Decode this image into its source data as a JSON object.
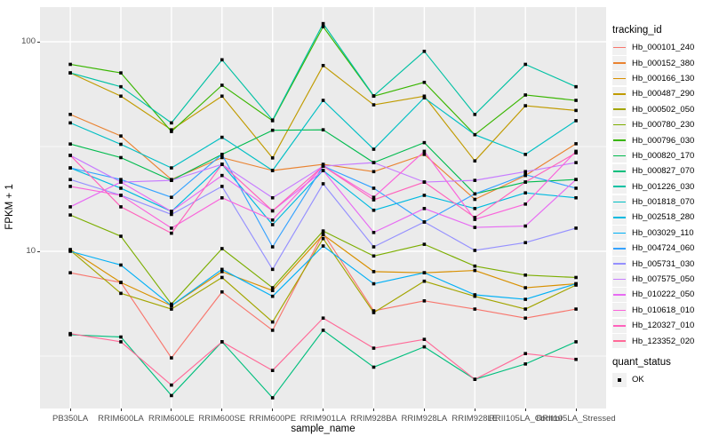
{
  "chart_data": {
    "type": "line",
    "title": "",
    "xlabel": "sample_name",
    "ylabel": "FPKM + 1",
    "y_scale": "log10",
    "ylim": [
      1.78,
      146
    ],
    "y_ticks": [
      10,
      100
    ],
    "y_minor_ticks": [
      3.162,
      31.62
    ],
    "grid": "white-on-gray-panel",
    "legend_position": "right",
    "legend_title": "tracking_id",
    "marker_legend": {
      "title": "quant_status",
      "label": "OK",
      "marker": "black-square"
    },
    "panel_color": "#EBEBEB",
    "categories": [
      "PB350LA",
      "RRIM600LA",
      "RRIM600LE",
      "RRIM600SE",
      "RRIM600PE",
      "RRIM901LA",
      "RRIM928BA",
      "RRIM928LA",
      "RRIM928LE",
      "RRII105LA_Control",
      "RRII105LA_Stressed"
    ],
    "series": [
      {
        "name": "Hb_000101_240",
        "color": "#F8766D",
        "values": [
          7.9,
          7.1,
          3.1,
          6.4,
          4.2,
          12.2,
          5.2,
          5.8,
          5.3,
          4.8,
          5.3
        ]
      },
      {
        "name": "Hb_000152_380",
        "color": "#EA8331",
        "values": [
          45,
          35.5,
          22,
          28,
          24.3,
          26,
          24,
          29,
          17.7,
          23,
          32.6
        ]
      },
      {
        "name": "Hb_000166_130",
        "color": "#D89000",
        "values": [
          10.2,
          7.1,
          5.5,
          8.0,
          6.5,
          12.0,
          8.0,
          7.9,
          8.1,
          6.7,
          7.0
        ]
      },
      {
        "name": "Hb_000487_290",
        "color": "#C09B00",
        "values": [
          71,
          55,
          38,
          55,
          27.9,
          77,
          50,
          55,
          27,
          49.5,
          47
        ]
      },
      {
        "name": "Hb_000502_050",
        "color": "#A3A500",
        "values": [
          10.1,
          6.3,
          5.3,
          7.5,
          4.6,
          11.5,
          5.1,
          7.2,
          6.1,
          5.3,
          6.9
        ]
      },
      {
        "name": "Hb_000780_230",
        "color": "#7CAE00",
        "values": [
          14.9,
          11.8,
          5.6,
          10.3,
          6.7,
          12.5,
          9.5,
          10.8,
          8.5,
          7.7,
          7.5
        ]
      },
      {
        "name": "Hb_000796_030",
        "color": "#39B600",
        "values": [
          78,
          71,
          37.3,
          62,
          42,
          118,
          55,
          64,
          36,
          55.7,
          52.5
        ]
      },
      {
        "name": "Hb_000820_170",
        "color": "#00BB4E",
        "values": [
          32.5,
          28,
          21.8,
          29,
          37.8,
          38,
          26.5,
          33,
          18.8,
          21.4,
          22
        ]
      },
      {
        "name": "Hb_000827_070",
        "color": "#00BF7D",
        "values": [
          4.0,
          3.9,
          2.05,
          3.7,
          2.0,
          4.2,
          2.8,
          3.5,
          2.45,
          2.9,
          3.7
        ]
      },
      {
        "name": "Hb_001226_030",
        "color": "#00C1A3",
        "values": [
          71,
          61,
          41,
          82,
          42.3,
          122,
          55.2,
          90,
          45,
          78,
          61
        ]
      },
      {
        "name": "Hb_001818_070",
        "color": "#00BFC4",
        "values": [
          41,
          32.4,
          25,
          35,
          24.3,
          52.5,
          30.7,
          54,
          36,
          29,
          42
        ]
      },
      {
        "name": "Hb_002518_280",
        "color": "#00BAE0",
        "values": [
          25,
          20,
          15.5,
          26,
          13.4,
          24.3,
          15.7,
          18.5,
          16,
          19,
          18
        ]
      },
      {
        "name": "Hb_003029_110",
        "color": "#00B0F6",
        "values": [
          10.0,
          8.6,
          5.5,
          8.2,
          6.1,
          10.6,
          7.0,
          7.9,
          6.2,
          5.9,
          7.0
        ]
      },
      {
        "name": "Hb_004724_060",
        "color": "#35A2FF",
        "values": [
          25,
          22,
          18.1,
          29,
          10.5,
          25.5,
          20,
          13.8,
          18.8,
          23.2,
          20
        ]
      },
      {
        "name": "Hb_005731_030",
        "color": "#9590FF",
        "values": [
          22,
          18.5,
          15,
          20.4,
          8.2,
          21,
          10.5,
          13.8,
          10.1,
          11,
          12.9
        ]
      },
      {
        "name": "Hb_007575_050",
        "color": "#C77CFF",
        "values": [
          28.7,
          21.4,
          21.8,
          26,
          18,
          25.5,
          26.5,
          21.4,
          21.8,
          24,
          26.5
        ]
      },
      {
        "name": "Hb_010222_050",
        "color": "#E76BF3",
        "values": [
          16.3,
          21.4,
          15.5,
          23,
          15.6,
          24.3,
          12.3,
          16,
          13,
          13.2,
          22
        ]
      },
      {
        "name": "Hb_010618_010",
        "color": "#FA62DB",
        "values": [
          20.4,
          18.5,
          12.9,
          18,
          14.1,
          25.5,
          18.1,
          30,
          14.2,
          16.8,
          30
        ]
      },
      {
        "name": "Hb_120327_010",
        "color": "#FF62BC",
        "values": [
          28.7,
          16.3,
          12.2,
          26,
          15.6,
          25.5,
          17.6,
          21.4,
          14.5,
          21.4,
          29.5
        ]
      },
      {
        "name": "Hb_123352_020",
        "color": "#FF6A98",
        "values": [
          4.05,
          3.7,
          2.3,
          3.7,
          2.7,
          4.8,
          3.45,
          3.8,
          2.45,
          3.25,
          3.05
        ]
      }
    ]
  }
}
